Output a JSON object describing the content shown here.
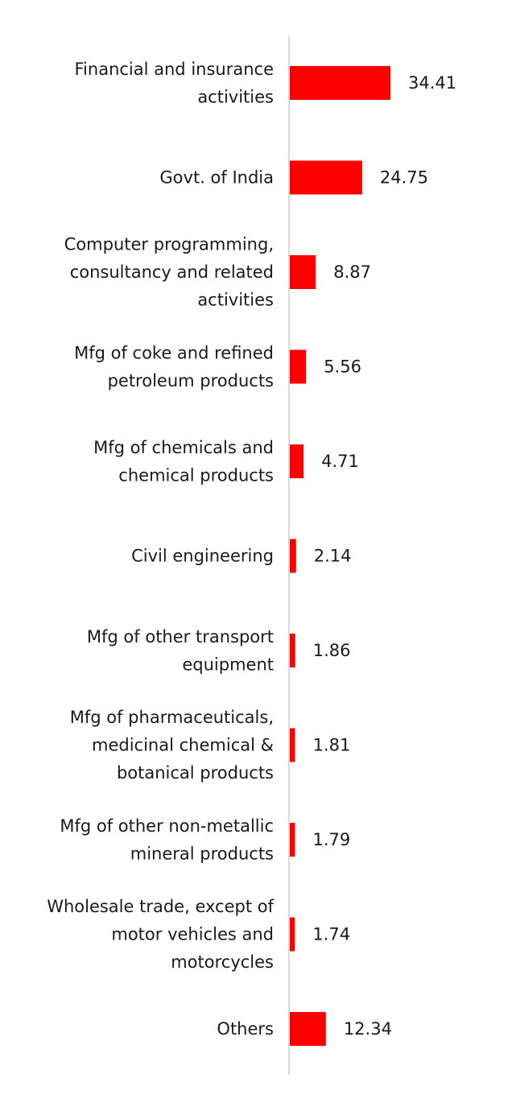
{
  "chart_data": {
    "type": "bar",
    "orientation": "horizontal",
    "color": "#ff0000",
    "axis_color": "#d9d9d9",
    "grid": false,
    "legend": "none",
    "xlim": [
      0,
      34.41
    ],
    "categories": [
      [
        "Financial and insurance",
        "activities"
      ],
      [
        "Govt. of India"
      ],
      [
        "Computer programming,",
        "consultancy and related",
        "activities"
      ],
      [
        "Mfg of coke and refined",
        "petroleum products"
      ],
      [
        "Mfg of chemicals and",
        "chemical products"
      ],
      [
        "Civil engineering"
      ],
      [
        "Mfg of other transport",
        "equipment"
      ],
      [
        "Mfg of pharmaceuticals,",
        "medicinal chemical &",
        "botanical products"
      ],
      [
        "Mfg of other non-metallic",
        "mineral products"
      ],
      [
        "Wholesale trade, except of",
        "motor vehicles and",
        "motorcycles"
      ],
      [
        "Others"
      ]
    ],
    "values": [
      34.41,
      24.75,
      8.87,
      5.56,
      4.71,
      2.14,
      1.86,
      1.81,
      1.79,
      1.74,
      12.34
    ],
    "value_labels": [
      "34.41",
      "24.75",
      "8.87",
      "5.56",
      "4.71",
      "2.14",
      "1.86",
      "1.81",
      "1.79",
      "1.74",
      "12.34"
    ]
  }
}
